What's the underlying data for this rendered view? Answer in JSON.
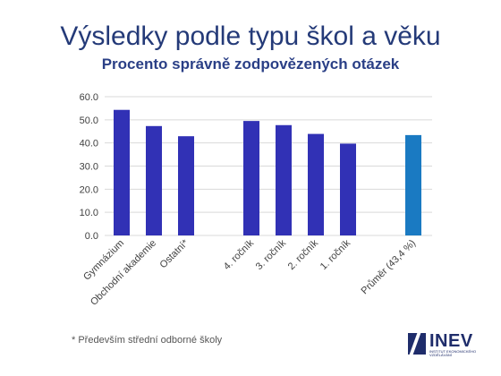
{
  "header": {
    "title": "Výsledky podle typu škol a věku",
    "subtitle": "Procento správně zodpovězených otázek"
  },
  "footnote": "* Především střední odborné školy",
  "logo": {
    "name": "INEV",
    "tagline": "INSTITUT EKONOMICKÉHO VZDĚLÁVÁNÍ"
  },
  "colors": {
    "bar": "#3131b5",
    "bar_highlight": "#1a7ac2",
    "grid": "#d9d9d9",
    "axis_text": "#404040"
  },
  "chart_data": {
    "type": "bar",
    "title": "Výsledky podle typu škol a věku",
    "subtitle": "Procento správně zodpovězených otázek",
    "xlabel": "",
    "ylabel": "",
    "ylim": [
      0,
      60
    ],
    "yticks": [
      "0.0",
      "10.0",
      "20.0",
      "30.0",
      "40.0",
      "50.0",
      "60.0"
    ],
    "grid": true,
    "categories": [
      "Gymnázium",
      "Obchodní akademie",
      "Ostatní*",
      "4. ročník",
      "3. ročník",
      "2. ročník",
      "1. ročník",
      "Průměr (43,4 %)"
    ],
    "values": [
      54.3,
      47.3,
      42.9,
      49.5,
      47.7,
      43.9,
      39.7,
      43.4
    ],
    "groups": [
      [
        0,
        1,
        2
      ],
      [
        3,
        4,
        5,
        6
      ],
      [
        7
      ]
    ],
    "highlight_index": 7
  }
}
